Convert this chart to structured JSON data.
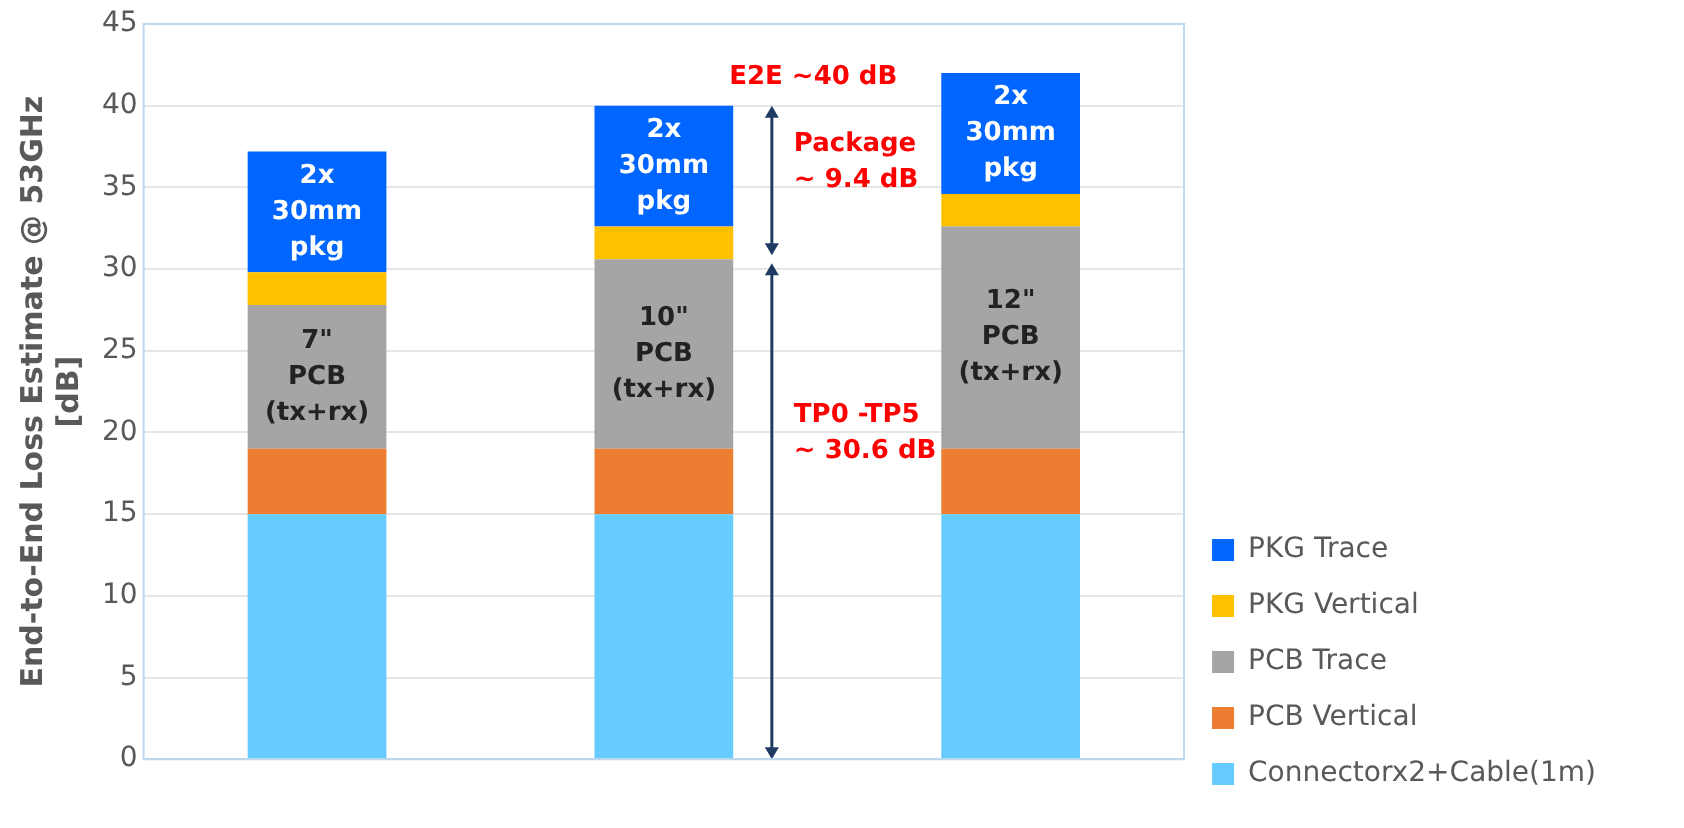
{
  "chart_data": {
    "type": "bar",
    "stacked": true,
    "ylabel": "End-to-End Loss Estimate @ 53GHz\n[dB]",
    "categories": [
      null,
      null,
      null
    ],
    "series": [
      {
        "name": "Connectorx2+Cable(1m)",
        "color": "#66ccff",
        "values": [
          15,
          15,
          15
        ]
      },
      {
        "name": "PCB Vertical",
        "color": "#ed7d31",
        "values": [
          4,
          4,
          4
        ]
      },
      {
        "name": "PCB Trace",
        "color": "#a5a5a5",
        "values": [
          8.8,
          11.6,
          13.6
        ]
      },
      {
        "name": "PKG Vertical",
        "color": "#ffc000",
        "values": [
          2,
          2,
          2
        ]
      },
      {
        "name": "PKG Trace",
        "color": "#0066ff",
        "values": [
          7.4,
          7.4,
          7.4
        ]
      }
    ],
    "ylim": [
      0,
      45
    ],
    "yticks": [
      0,
      5,
      10,
      15,
      20,
      25,
      30,
      35,
      40,
      45
    ],
    "grid": "y",
    "legend": "right",
    "annotations": [
      "2x\n30mm\npkg",
      "7\"\nPCB\n(tx+rx)",
      "2x\n30mm\npkg",
      "10\"\nPCB\n(tx+rx)",
      "2x\n30mm\npkg",
      "12\"\nPCB\n(tx+rx)",
      "E2E ~40 dB",
      "Package\n~ 9.4 dB",
      "TP0 -TP5\n~ 30.6 dB"
    ]
  }
}
